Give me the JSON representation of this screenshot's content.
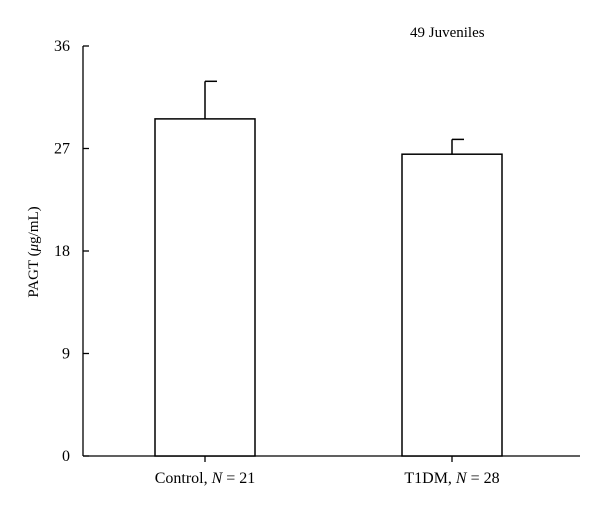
{
  "chart_data": {
    "type": "bar",
    "categories": [
      "Control",
      "T1DM"
    ],
    "category_labels": [
      {
        "name": "Control",
        "n_label": "N",
        "n_value": "= 21"
      },
      {
        "name": "T1DM",
        "n_label": "N",
        "n_value": "= 28"
      }
    ],
    "values": [
      29.6,
      26.5
    ],
    "error_upper": [
      32.9,
      27.8
    ],
    "ylabel": {
      "prefix": "PAGT (",
      "mu": "μ",
      "suffix": "g/mL)"
    },
    "ylim": [
      0,
      36
    ],
    "yticks": [
      "0",
      "9",
      "18",
      "27",
      "36"
    ],
    "annotation": "49 Juveniles",
    "bar_fill": "#ffffff",
    "line_color": "#000000",
    "grid": false
  }
}
